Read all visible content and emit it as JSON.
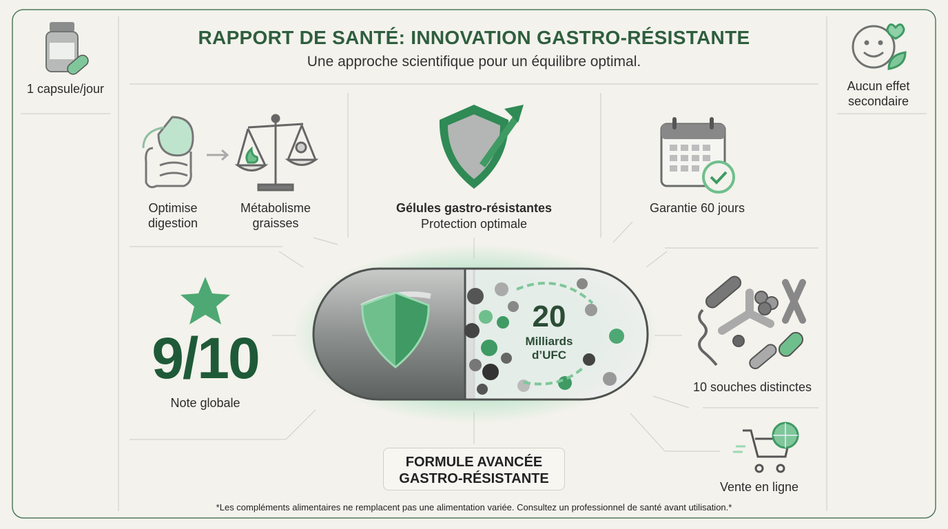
{
  "header": {
    "title": "RAPPORT DE SANTÉ: INNOVATION GASTRO-RÉSISTANTE",
    "subtitle": "Une approche scientifique pour un équilibre optimal."
  },
  "sidebar_left": {
    "dosage": "1 capsule/jour"
  },
  "sidebar_right": {
    "side_effects": "Aucun effet secondaire"
  },
  "features": {
    "digestion": "Optimise digestion",
    "metabolism": "Métabolisme graisses",
    "capsules_title": "Gélules gastro-résistantes",
    "capsules_subtitle": "Protection optimale",
    "guarantee": "Garantie 60 jours",
    "strains": "10 souches distinctes",
    "sales": "Vente en ligne"
  },
  "rating": {
    "score": "9/10",
    "label": "Note globale"
  },
  "capsule": {
    "count": "20",
    "unit": "Milliards d’UFC"
  },
  "badge": "FORMULE AVANCÉE GASTRO-RÉSISTANTE",
  "footnote": "*Les compléments alimentaires ne remplacent pas une alimentation variée. Consultez un professionnel de santé avant utilisation.*"
}
